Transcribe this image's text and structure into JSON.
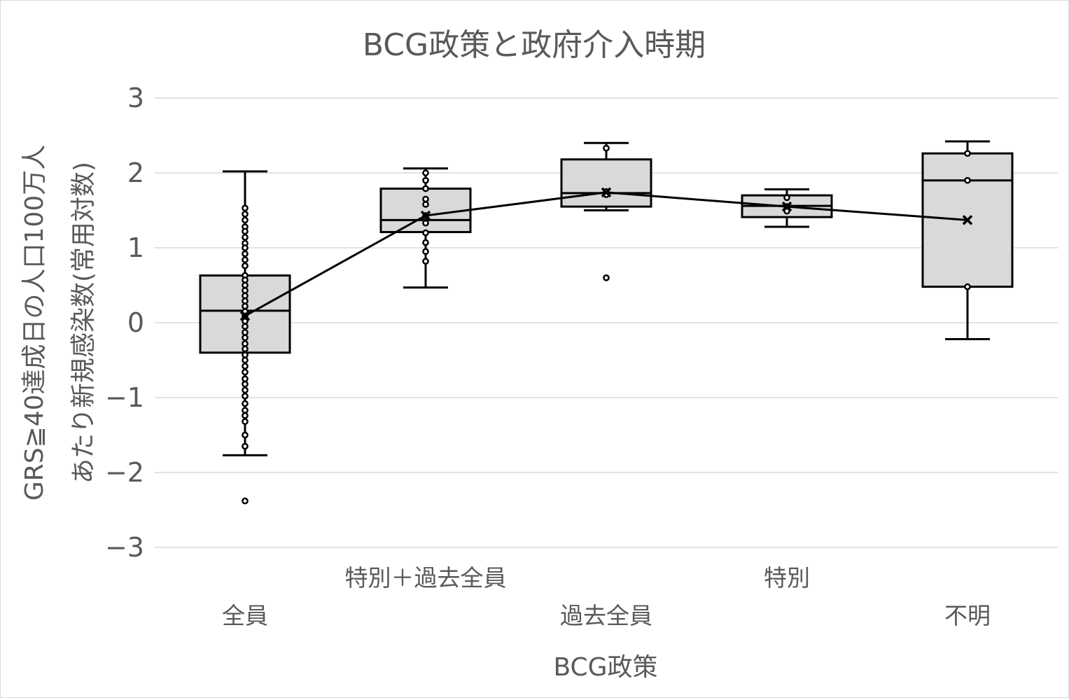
{
  "chart_data": {
    "type": "box",
    "title": "BCG政策と政府介入時期",
    "xlabel": "BCG政策",
    "ylabel_lines": [
      "GRS≧40達成日の人口100万人",
      "あたり新規感染数(常用対数)"
    ],
    "ylim": [
      -3,
      3
    ],
    "yticks": [
      3,
      2,
      1,
      0,
      -1,
      -2,
      -3
    ],
    "ytick_labels": [
      "3",
      "2",
      "1",
      "0",
      "−1",
      "−2",
      "−3"
    ],
    "grid": true,
    "legend": "none",
    "mean_line": true,
    "colors": {
      "box_fill": "#d9d9d9",
      "stroke": "#000000",
      "grid": "#d9d9d9",
      "text": "#595959"
    },
    "categories": [
      "全員",
      "特別＋過去全員",
      "過去全員",
      "特別",
      "不明"
    ],
    "groups": [
      {
        "category": "全員",
        "whisker_low": -1.77,
        "q1": -0.4,
        "median": 0.16,
        "q3": 0.63,
        "whisker_high": 2.02,
        "mean": 0.09,
        "points": [
          1.53,
          1.45,
          1.37,
          1.28,
          1.22,
          1.14,
          1.06,
          1.0,
          0.92,
          0.84,
          0.76,
          0.63,
          0.57,
          0.5,
          0.43,
          0.36,
          0.29,
          0.22,
          0.15,
          0.09,
          0.02,
          -0.05,
          -0.13,
          -0.2,
          -0.28,
          -0.35,
          -0.43,
          -0.5,
          -0.58,
          -0.66,
          -0.75,
          -0.82,
          -0.9,
          -0.98,
          -1.08,
          -1.17,
          -1.24,
          -1.32,
          -1.5,
          -1.65,
          -2.38
        ]
      },
      {
        "category": "特別＋過去全員",
        "whisker_low": 0.47,
        "q1": 1.21,
        "median": 1.37,
        "q3": 1.79,
        "whisker_high": 2.06,
        "mean": 1.43,
        "points": [
          2.0,
          1.9,
          1.79,
          1.65,
          1.58,
          1.43,
          1.33,
          1.2,
          1.07,
          0.95,
          0.82
        ]
      },
      {
        "category": "過去全員",
        "whisker_low": 1.5,
        "q1": 1.55,
        "median": 1.73,
        "q3": 2.18,
        "whisker_high": 2.4,
        "mean": 1.74,
        "points": [
          2.33,
          1.75,
          1.71,
          0.6
        ]
      },
      {
        "category": "特別",
        "whisker_low": 1.28,
        "q1": 1.41,
        "median": 1.56,
        "q3": 1.7,
        "whisker_high": 1.78,
        "mean": 1.55,
        "points": [
          1.67,
          1.55,
          1.49
        ]
      },
      {
        "category": "不明",
        "whisker_low": -0.22,
        "q1": 0.48,
        "median": 1.9,
        "q3": 2.26,
        "whisker_high": 2.42,
        "mean": 1.37,
        "points": [
          2.26,
          1.9,
          0.48
        ]
      }
    ]
  }
}
